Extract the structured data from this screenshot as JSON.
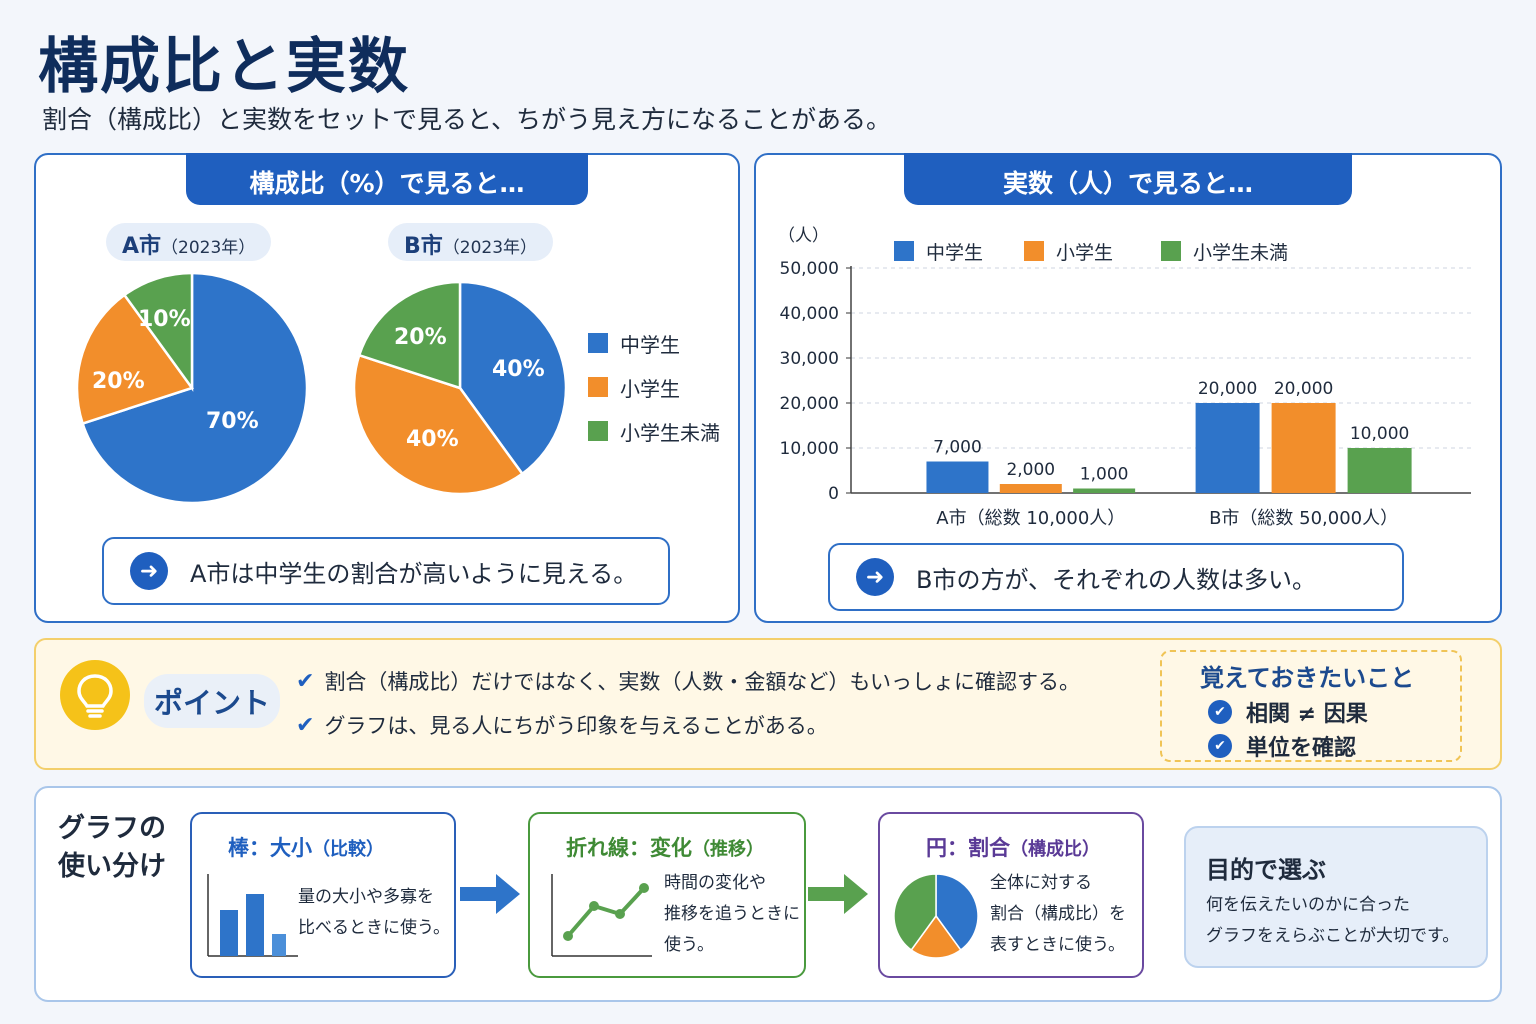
{
  "title": "構成比と実数",
  "subtitle": "割合（構成比）と実数をセットで見ると、ちがう見え方になることがある。",
  "colors": {
    "junior_high": "#2e74c9",
    "elementary": "#f28e2b",
    "under_elementary": "#59a14f",
    "accent": "#1f5fbf"
  },
  "left_panel": {
    "title": "構成比（%）で見ると…",
    "city_a": {
      "name": "A市",
      "year": "（2023年）"
    },
    "city_b": {
      "name": "B市",
      "year": "（2023年）"
    },
    "legend": [
      "中学生",
      "小学生",
      "小学生未満"
    ],
    "callout": "A市は中学生の割合が高いように見える。"
  },
  "right_panel": {
    "title": "実数（人）で見ると…",
    "unit": "（人）",
    "legend": [
      "中学生",
      "小学生",
      "小学生未満"
    ],
    "callout": "B市の方が、それぞれの人数は多い。"
  },
  "chart_data": [
    {
      "type": "pie",
      "title": "A市（2023年）",
      "categories": [
        "中学生",
        "小学生",
        "小学生未満"
      ],
      "values": [
        70,
        20,
        10
      ],
      "labels": [
        "70%",
        "20%",
        "10%"
      ]
    },
    {
      "type": "pie",
      "title": "B市（2023年）",
      "categories": [
        "中学生",
        "小学生",
        "小学生未満"
      ],
      "values": [
        40,
        40,
        20
      ],
      "labels": [
        "40%",
        "40%",
        "20%"
      ]
    },
    {
      "type": "bar",
      "categories": [
        "A市（総数 10,000人）",
        "B市（総数 50,000人）"
      ],
      "series": [
        {
          "name": "中学生",
          "values": [
            7000,
            20000
          ]
        },
        {
          "name": "小学生",
          "values": [
            2000,
            20000
          ]
        },
        {
          "name": "小学生未満",
          "values": [
            1000,
            10000
          ]
        }
      ],
      "value_labels": [
        [
          "7,000",
          "20,000"
        ],
        [
          "2,000",
          "20,000"
        ],
        [
          "1,000",
          "10,000"
        ]
      ],
      "ylabel": "（人）",
      "ylim": [
        0,
        50000
      ],
      "yticks": [
        "0",
        "10,000",
        "20,000",
        "30,000",
        "40,000",
        "50,000"
      ],
      "grid": true,
      "legend_position": "top"
    }
  ],
  "point": {
    "label": "ポイント",
    "items": [
      "割合（構成比）だけではなく、実数（人数・金額など）もいっしょに確認する。",
      "グラフは、見る人にちがう印象を与えることがある。"
    ],
    "memo_title": "覚えておきたいこと",
    "memo_items": [
      "相関 ≠ 因果",
      "単位を確認"
    ]
  },
  "usage": {
    "heading_line1": "グラフの",
    "heading_line2": "使い分け",
    "bar": {
      "title": "棒：大小",
      "title_sub": "（比較）",
      "text": "量の大小や多寡を\n比べるときに使う。"
    },
    "line": {
      "title": "折れ線：変化",
      "title_sub": "（推移）",
      "text": "時間の変化や\n推移を追うときに\n使う。"
    },
    "pie": {
      "title": "円：割合",
      "title_sub": "（構成比）",
      "text": "全体に対する\n割合（構成比）を\n表すときに使う。"
    },
    "goal_title": "目的で選ぶ",
    "goal_text": "何を伝えたいのかに合った\nグラフをえらぶことが大切です。"
  }
}
